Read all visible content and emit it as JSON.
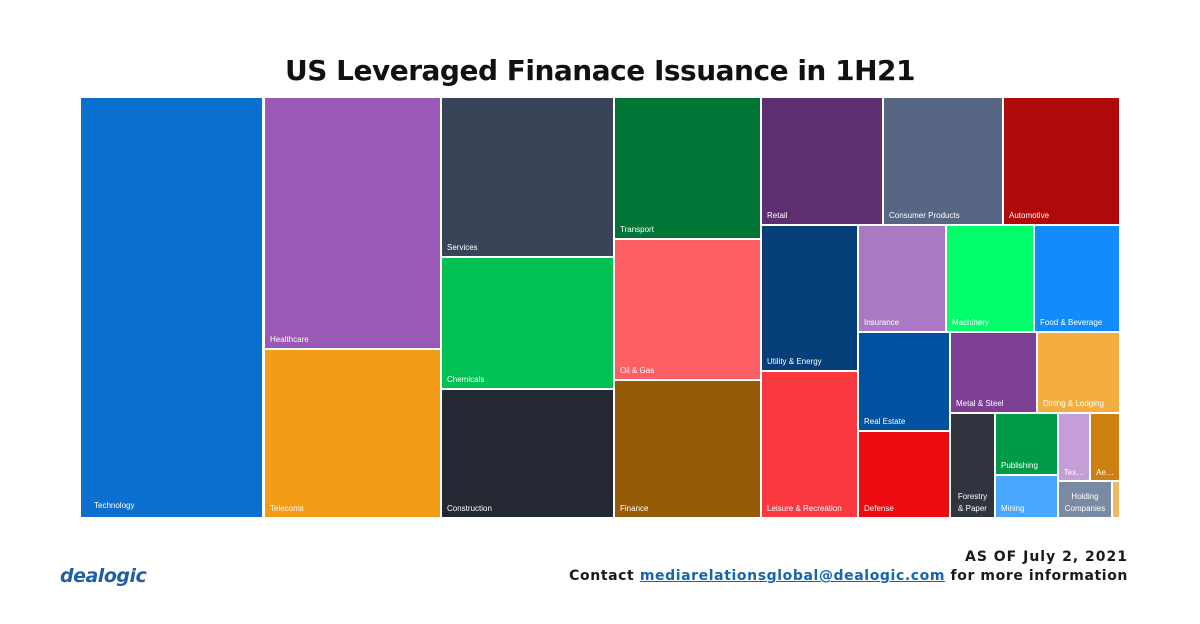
{
  "chart_data": {
    "type": "treemap",
    "title": "US Leveraged Finanace Issuance in 1H21",
    "cells": [
      {
        "label": "Technology",
        "color": "#0b6fd0"
      },
      {
        "label": "Healthcare",
        "color": "#9a59b5"
      },
      {
        "label": "Telecoms",
        "color": "#f29c17"
      },
      {
        "label": "Services",
        "color": "#394458"
      },
      {
        "label": "Chemicals",
        "color": "#00c254"
      },
      {
        "label": "Construction",
        "color": "#232833"
      },
      {
        "label": "Transport",
        "color": "#007536"
      },
      {
        "label": "Oil & Gas",
        "color": "#fc6065"
      },
      {
        "label": "Finance",
        "color": "#955b07"
      },
      {
        "label": "Retail",
        "color": "#5e2f70"
      },
      {
        "label": "Consumer Products",
        "color": "#566683"
      },
      {
        "label": "Automotive",
        "color": "#b0090a"
      },
      {
        "label": "Utility & Energy",
        "color": "#043f7a"
      },
      {
        "label": "Leisure & Recreation",
        "color": "#f93840"
      },
      {
        "label": "Insurance",
        "color": "#ab78c4"
      },
      {
        "label": "Machinery",
        "color": "#00ff6a"
      },
      {
        "label": "Food & Beverage",
        "color": "#128cfb"
      },
      {
        "label": "Real Estate",
        "color": "#0052a1"
      },
      {
        "label": "Defense",
        "color": "#eb0b10"
      },
      {
        "label": "Metal & Steel",
        "color": "#7c3f92"
      },
      {
        "label": "Dining & Lodging",
        "color": "#f4ae40"
      },
      {
        "label": "Forestry & Paper",
        "color": "#30343f"
      },
      {
        "label": "Publishing",
        "color": "#009b49"
      },
      {
        "label": "Mining",
        "color": "#48a8ff"
      },
      {
        "label": "Tex…",
        "color": "#c59ed8"
      },
      {
        "label": "Ae…",
        "color": "#cd7f10"
      },
      {
        "label": "Holding Companies",
        "color": "#7a8aa3"
      },
      {
        "label": "",
        "color": "#f2b860"
      }
    ]
  },
  "footer": {
    "as_of": "AS OF July 2, 2021",
    "contact_prefix": "Contact ",
    "contact_email": "mediarelationsglobal@dealogic.com",
    "contact_suffix": " for more information"
  },
  "logo_text": "dealogic"
}
